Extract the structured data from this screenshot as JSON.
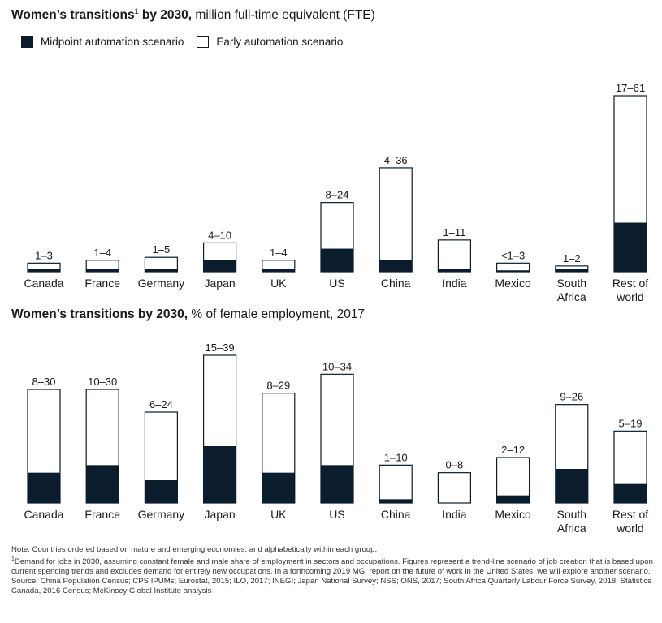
{
  "colors": {
    "midpoint": "#0b1c2c",
    "early": "#ffffff",
    "outline": "#0b1c2c"
  },
  "titles": {
    "chart1_bold": "Women’s transitions",
    "chart1_sup": "1",
    "chart1_bold2": " by 2030,",
    "chart1_rest": " million full-time equivalent (FTE)",
    "chart2_bold": "Women’s transitions by 2030,",
    "chart2_rest": " % of female employment, 2017"
  },
  "legend": {
    "midpoint": "Midpoint automation scenario",
    "early": "Early automation scenario"
  },
  "chart_data": [
    {
      "type": "bar",
      "title": "Women’s transitions by 2030, million full-time equivalent (FTE)",
      "categories": [
        "Canada",
        "France",
        "Germany",
        "Japan",
        "UK",
        "US",
        "China",
        "India",
        "Mexico",
        "South Africa",
        "Rest of world"
      ],
      "category_lines": [
        [
          "Canada"
        ],
        [
          "France"
        ],
        [
          "Germany"
        ],
        [
          "Japan"
        ],
        [
          "UK"
        ],
        [
          "US"
        ],
        [
          "China"
        ],
        [
          "India"
        ],
        [
          "Mexico"
        ],
        [
          "South",
          "Africa"
        ],
        [
          "Rest of",
          "world"
        ]
      ],
      "series": [
        {
          "name": "Midpoint automation scenario",
          "values": [
            1,
            1,
            1,
            4,
            1,
            8,
            4,
            1,
            0.5,
            1,
            17
          ]
        },
        {
          "name": "Early automation scenario",
          "values": [
            3,
            4,
            5,
            10,
            4,
            24,
            36,
            11,
            3,
            2,
            61
          ]
        }
      ],
      "labels": [
        "1–3",
        "1–4",
        "1–5",
        "4–10",
        "1–4",
        "8–24",
        "4–36",
        "1–11",
        "<1–3",
        "1–2",
        "17–61"
      ],
      "ylim": [
        0,
        61
      ]
    },
    {
      "type": "bar",
      "title": "Women’s transitions by 2030, % of female employment, 2017",
      "categories": [
        "Canada",
        "France",
        "Germany",
        "Japan",
        "UK",
        "US",
        "China",
        "India",
        "Mexico",
        "South Africa",
        "Rest of world"
      ],
      "category_lines": [
        [
          "Canada"
        ],
        [
          "France"
        ],
        [
          "Germany"
        ],
        [
          "Japan"
        ],
        [
          "UK"
        ],
        [
          "US"
        ],
        [
          "China"
        ],
        [
          "India"
        ],
        [
          "Mexico"
        ],
        [
          "South",
          "Africa"
        ],
        [
          "Rest of",
          "world"
        ]
      ],
      "series": [
        {
          "name": "Midpoint automation scenario",
          "values": [
            8,
            10,
            6,
            15,
            8,
            10,
            1,
            0,
            2,
            9,
            5
          ]
        },
        {
          "name": "Early automation scenario",
          "values": [
            30,
            30,
            24,
            39,
            29,
            34,
            10,
            8,
            12,
            26,
            19
          ]
        }
      ],
      "labels": [
        "8–30",
        "10–30",
        "6–24",
        "15–39",
        "8–29",
        "10–34",
        "1–10",
        "0–8",
        "2–12",
        "9–26",
        "5–19"
      ],
      "ylim": [
        0,
        39
      ]
    }
  ],
  "notes": [
    "Note: Countries ordered based on mature and emerging economies, and alphabetically within each group.",
    "Demand for jobs in 2030, assuming constant female and male share of employment in sectors and occupations. Figures represent a trend-line scenario of job creation that is based upon current spending trends and excludes demand for entirely new occupations. In a forthcoming 2019 MGI report on the future of work in the United States, we will explore another scenario.",
    "Source: China Population Census; CPS IPUMs; Eurostat, 2015; ILO, 2017; INEGI; Japan National Survey; NSS; ONS, 2017; South Africa Quarterly Labour Force Survey, 2018; Statistics Canada, 2016 Census; McKinsey Global Institute analysis"
  ],
  "note_footnote_mark": "1"
}
